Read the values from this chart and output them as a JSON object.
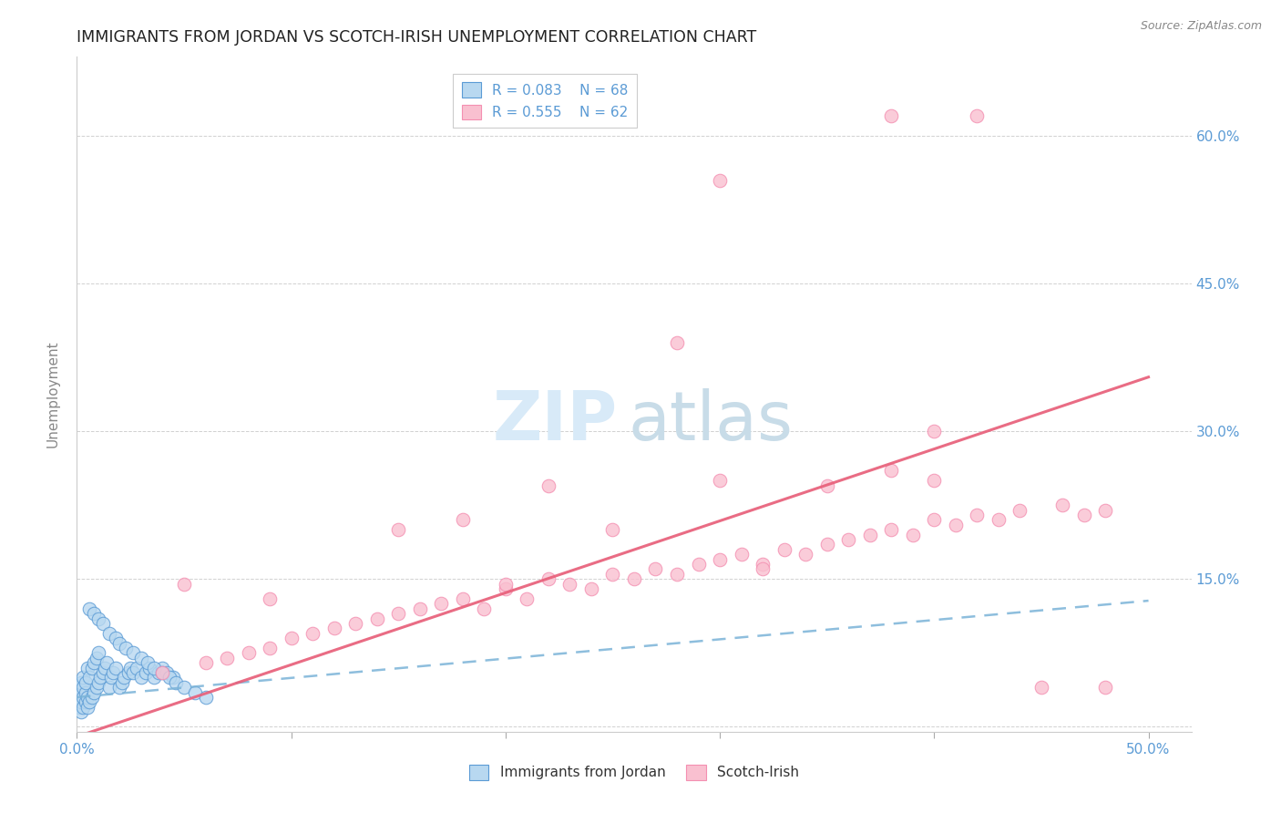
{
  "title": "IMMIGRANTS FROM JORDAN VS SCOTCH-IRISH UNEMPLOYMENT CORRELATION CHART",
  "source": "Source: ZipAtlas.com",
  "ylabel": "Unemployment",
  "xlim": [
    0.0,
    0.52
  ],
  "ylim": [
    -0.005,
    0.68
  ],
  "xticks": [
    0.0,
    0.1,
    0.2,
    0.3,
    0.4,
    0.5
  ],
  "xticklabels": [
    "0.0%",
    "",
    "",
    "",
    "",
    "50.0%"
  ],
  "yticks": [
    0.0,
    0.15,
    0.3,
    0.45,
    0.6
  ],
  "yticklabels_right": [
    "",
    "15.0%",
    "30.0%",
    "45.0%",
    "60.0%"
  ],
  "blue_face": "#b8d8f0",
  "blue_edge": "#5b9bd5",
  "pink_face": "#f9c0d0",
  "pink_edge": "#f48fb1",
  "blue_line_color": "#7ab3d8",
  "pink_line_color": "#e8607a",
  "grid_color": "#cccccc",
  "title_color": "#222222",
  "tick_color": "#5b9bd5",
  "ylabel_color": "#888888",
  "source_color": "#888888",
  "watermark_zip_color": "#d8eaf8",
  "watermark_atlas_color": "#c8dce8",
  "blue_scatter_x": [
    0.001,
    0.001,
    0.001,
    0.002,
    0.002,
    0.002,
    0.002,
    0.003,
    0.003,
    0.003,
    0.003,
    0.004,
    0.004,
    0.004,
    0.005,
    0.005,
    0.005,
    0.006,
    0.006,
    0.007,
    0.007,
    0.008,
    0.008,
    0.009,
    0.009,
    0.01,
    0.01,
    0.011,
    0.012,
    0.013,
    0.014,
    0.015,
    0.016,
    0.017,
    0.018,
    0.02,
    0.021,
    0.022,
    0.024,
    0.025,
    0.026,
    0.028,
    0.03,
    0.032,
    0.034,
    0.036,
    0.038,
    0.04,
    0.042,
    0.045,
    0.006,
    0.008,
    0.01,
    0.012,
    0.015,
    0.018,
    0.02,
    0.023,
    0.026,
    0.03,
    0.033,
    0.036,
    0.04,
    0.043,
    0.046,
    0.05,
    0.055,
    0.06
  ],
  "blue_scatter_y": [
    0.02,
    0.03,
    0.04,
    0.015,
    0.025,
    0.035,
    0.045,
    0.02,
    0.03,
    0.04,
    0.05,
    0.025,
    0.035,
    0.045,
    0.02,
    0.03,
    0.06,
    0.025,
    0.05,
    0.03,
    0.06,
    0.035,
    0.065,
    0.04,
    0.07,
    0.045,
    0.075,
    0.05,
    0.055,
    0.06,
    0.065,
    0.04,
    0.05,
    0.055,
    0.06,
    0.04,
    0.045,
    0.05,
    0.055,
    0.06,
    0.055,
    0.06,
    0.05,
    0.055,
    0.06,
    0.05,
    0.055,
    0.06,
    0.055,
    0.05,
    0.12,
    0.115,
    0.11,
    0.105,
    0.095,
    0.09,
    0.085,
    0.08,
    0.075,
    0.07,
    0.065,
    0.06,
    0.055,
    0.05,
    0.045,
    0.04,
    0.035,
    0.03
  ],
  "pink_scatter_x": [
    0.04,
    0.06,
    0.07,
    0.08,
    0.09,
    0.1,
    0.11,
    0.12,
    0.13,
    0.14,
    0.15,
    0.16,
    0.17,
    0.18,
    0.19,
    0.2,
    0.21,
    0.22,
    0.23,
    0.24,
    0.25,
    0.26,
    0.27,
    0.28,
    0.29,
    0.3,
    0.31,
    0.32,
    0.33,
    0.34,
    0.35,
    0.36,
    0.37,
    0.38,
    0.39,
    0.4,
    0.41,
    0.42,
    0.43,
    0.44,
    0.45,
    0.46,
    0.47,
    0.48,
    0.05,
    0.09,
    0.15,
    0.2,
    0.25,
    0.3,
    0.35,
    0.38,
    0.4,
    0.28,
    0.32,
    0.38,
    0.42,
    0.22,
    0.18,
    0.3,
    0.4,
    0.48
  ],
  "pink_scatter_y": [
    0.055,
    0.065,
    0.07,
    0.075,
    0.08,
    0.09,
    0.095,
    0.1,
    0.105,
    0.11,
    0.115,
    0.12,
    0.125,
    0.13,
    0.12,
    0.14,
    0.13,
    0.15,
    0.145,
    0.14,
    0.155,
    0.15,
    0.16,
    0.155,
    0.165,
    0.17,
    0.175,
    0.165,
    0.18,
    0.175,
    0.185,
    0.19,
    0.195,
    0.2,
    0.195,
    0.21,
    0.205,
    0.215,
    0.21,
    0.22,
    0.04,
    0.225,
    0.215,
    0.22,
    0.145,
    0.13,
    0.2,
    0.145,
    0.2,
    0.25,
    0.245,
    0.26,
    0.3,
    0.39,
    0.16,
    0.62,
    0.62,
    0.245,
    0.21,
    0.555,
    0.25,
    0.04
  ],
  "pink_line_x0": 0.0,
  "pink_line_y0": -0.01,
  "pink_line_x1": 0.5,
  "pink_line_y1": 0.355,
  "blue_line_x0": 0.0,
  "blue_line_y0": 0.03,
  "blue_line_x1": 0.5,
  "blue_line_y1": 0.128
}
